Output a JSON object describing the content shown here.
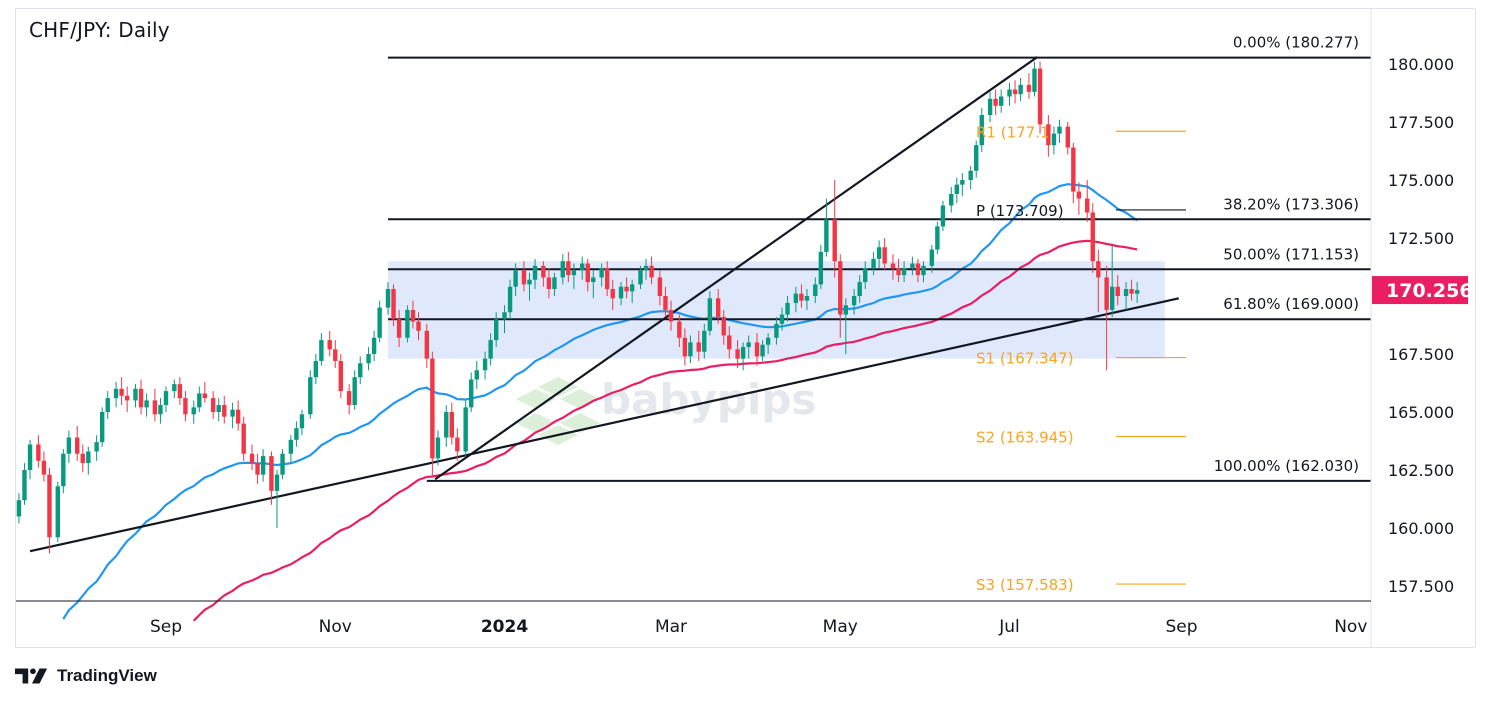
{
  "chart": {
    "title": "CHF/JPY: Daily"
  },
  "footer": {
    "brand": "TradingView"
  },
  "watermark": "babypips",
  "colors": {
    "up": "#089981",
    "down": "#f23645",
    "sma100": "#2196f3",
    "sma200": "#e91e63",
    "zone": "#dbe5fb",
    "pivot": "#f5a623",
    "line": "#131722",
    "price_badge": "#e91e63"
  },
  "chart_data": {
    "type": "candlestick",
    "title": "CHF/JPY: Daily",
    "y_axis": {
      "ticks": [
        "157.500",
        "160.000",
        "162.500",
        "165.000",
        "167.500",
        "170.000",
        "172.500",
        "175.000",
        "177.500",
        "180.000"
      ],
      "range": [
        156.5,
        182.0
      ]
    },
    "x_axis": {
      "ticks": [
        "Sep",
        "Nov",
        "2024",
        "Mar",
        "May",
        "Jul",
        "Sep",
        "Nov"
      ]
    },
    "current_price": "170.256",
    "fibonacci": [
      {
        "label": "0.00% (180.277)",
        "value": 180.277
      },
      {
        "label": "38.20% (173.306)",
        "value": 173.306
      },
      {
        "label": "50.00% (171.153)",
        "value": 171.153
      },
      {
        "label": "61.80% (169.000)",
        "value": 169.0
      },
      {
        "label": "100.00% (162.030)",
        "value": 162.03
      }
    ],
    "pivots": [
      {
        "label": "R1 (177.1",
        "value": 177.1,
        "color": "#f5a623"
      },
      {
        "label": "P (173.709)",
        "value": 173.709,
        "color": "#131722"
      },
      {
        "label": "S1 (167.347)",
        "value": 167.347,
        "color": "#f5a623"
      },
      {
        "label": "S2 (163.945)",
        "value": 163.945,
        "color": "#f5a623"
      },
      {
        "label": "S3 (157.583)",
        "value": 157.583,
        "color": "#f5a623"
      }
    ],
    "trendlines": [
      {
        "name": "rising-support",
        "points": [
          [
            "2023-07-14",
            159.0
          ],
          [
            "2024-08-31",
            169.9
          ]
        ]
      },
      {
        "name": "rising-channel-top",
        "points": [
          [
            "2023-12-07",
            162.1
          ],
          [
            "2024-07-11",
            180.3
          ]
        ]
      }
    ],
    "zone": {
      "from": "2023-11-20",
      "to": "2024-08-26",
      "low": 167.3,
      "high": 171.5
    },
    "candles": [
      [
        "2023-07-03",
        158.5,
        159.3,
        158.2,
        159.1
      ],
      [
        "2023-07-05",
        159.1,
        160.2,
        158.9,
        160.0
      ],
      [
        "2023-07-07",
        160.0,
        160.8,
        159.7,
        160.5
      ],
      [
        "2023-07-10",
        160.5,
        161.5,
        160.2,
        161.2
      ],
      [
        "2023-07-12",
        161.2,
        162.8,
        161.0,
        162.5
      ],
      [
        "2023-07-14",
        162.5,
        163.8,
        162.1,
        163.6
      ],
      [
        "2023-07-17",
        163.6,
        164.0,
        162.6,
        162.9
      ],
      [
        "2023-07-19",
        162.9,
        163.3,
        162.0,
        162.3
      ],
      [
        "2023-07-21",
        162.3,
        162.6,
        158.9,
        159.6
      ],
      [
        "2023-07-24",
        159.6,
        162.0,
        159.4,
        161.8
      ],
      [
        "2023-07-26",
        161.8,
        163.4,
        161.5,
        163.2
      ],
      [
        "2023-07-28",
        163.2,
        164.2,
        162.8,
        163.9
      ],
      [
        "2023-07-31",
        163.9,
        164.4,
        162.9,
        163.2
      ],
      [
        "2023-08-02",
        163.2,
        163.6,
        162.4,
        162.8
      ],
      [
        "2023-08-04",
        162.8,
        163.5,
        162.3,
        163.3
      ],
      [
        "2023-08-07",
        163.3,
        164.0,
        162.9,
        163.7
      ],
      [
        "2023-08-09",
        163.7,
        165.2,
        163.5,
        165.0
      ],
      [
        "2023-08-11",
        165.0,
        165.9,
        164.7,
        165.6
      ],
      [
        "2023-08-14",
        165.6,
        166.3,
        165.2,
        166.0
      ],
      [
        "2023-08-16",
        166.0,
        166.5,
        165.3,
        165.7
      ],
      [
        "2023-08-18",
        165.7,
        166.1,
        165.0,
        165.5
      ],
      [
        "2023-08-21",
        165.5,
        166.2,
        165.2,
        166.0
      ],
      [
        "2023-08-23",
        166.0,
        166.4,
        164.9,
        165.2
      ],
      [
        "2023-08-25",
        165.2,
        165.8,
        164.8,
        165.5
      ],
      [
        "2023-08-28",
        165.5,
        166.0,
        164.6,
        164.9
      ],
      [
        "2023-08-30",
        164.9,
        165.6,
        164.5,
        165.3
      ],
      [
        "2023-09-01",
        165.3,
        166.1,
        165.0,
        165.9
      ],
      [
        "2023-09-04",
        165.9,
        166.4,
        165.6,
        166.2
      ],
      [
        "2023-09-06",
        166.2,
        166.5,
        165.3,
        165.6
      ],
      [
        "2023-09-08",
        165.6,
        165.9,
        164.6,
        164.9
      ],
      [
        "2023-09-11",
        164.9,
        165.5,
        164.5,
        165.2
      ],
      [
        "2023-09-13",
        165.2,
        166.1,
        165.0,
        165.8
      ],
      [
        "2023-09-15",
        165.8,
        166.3,
        165.4,
        165.6
      ],
      [
        "2023-09-18",
        165.6,
        165.9,
        164.7,
        165.0
      ],
      [
        "2023-09-20",
        165.0,
        165.6,
        164.6,
        165.3
      ],
      [
        "2023-09-22",
        165.3,
        165.7,
        164.5,
        164.8
      ],
      [
        "2023-09-25",
        164.8,
        165.4,
        164.3,
        165.1
      ],
      [
        "2023-09-27",
        165.1,
        165.5,
        164.2,
        164.5
      ],
      [
        "2023-09-29",
        164.5,
        164.8,
        162.9,
        163.2
      ],
      [
        "2023-10-02",
        163.2,
        163.6,
        162.5,
        162.8
      ],
      [
        "2023-10-04",
        162.8,
        163.2,
        161.9,
        162.3
      ],
      [
        "2023-10-06",
        162.3,
        163.4,
        162.0,
        163.1
      ],
      [
        "2023-10-09",
        163.1,
        163.3,
        161.0,
        161.6
      ],
      [
        "2023-10-11",
        161.6,
        162.5,
        160.0,
        162.3
      ],
      [
        "2023-10-13",
        162.3,
        163.4,
        162.1,
        163.2
      ],
      [
        "2023-10-16",
        163.2,
        164.0,
        162.8,
        163.8
      ],
      [
        "2023-10-18",
        163.8,
        164.6,
        163.5,
        164.3
      ],
      [
        "2023-10-20",
        164.3,
        165.1,
        164.0,
        164.9
      ],
      [
        "2023-10-23",
        164.9,
        166.8,
        164.7,
        166.5
      ],
      [
        "2023-10-25",
        166.5,
        167.5,
        166.2,
        167.2
      ],
      [
        "2023-10-27",
        167.2,
        168.4,
        167.0,
        168.1
      ],
      [
        "2023-10-30",
        168.1,
        168.5,
        167.4,
        167.7
      ],
      [
        "2023-11-01",
        167.7,
        168.1,
        166.9,
        167.2
      ],
      [
        "2023-11-03",
        167.2,
        167.5,
        165.6,
        165.9
      ],
      [
        "2023-11-06",
        165.9,
        166.2,
        164.9,
        165.3
      ],
      [
        "2023-11-08",
        165.3,
        166.8,
        165.1,
        166.5
      ],
      [
        "2023-11-10",
        166.5,
        167.4,
        166.2,
        167.1
      ],
      [
        "2023-11-13",
        167.1,
        167.8,
        166.8,
        167.5
      ],
      [
        "2023-11-15",
        167.5,
        168.5,
        167.2,
        168.2
      ],
      [
        "2023-11-17",
        168.2,
        169.8,
        168.0,
        169.5
      ],
      [
        "2023-11-20",
        169.5,
        170.6,
        169.2,
        170.3
      ],
      [
        "2023-11-22",
        170.3,
        170.5,
        168.7,
        169.0
      ],
      [
        "2023-11-24",
        169.0,
        169.4,
        167.8,
        168.2
      ],
      [
        "2023-11-27",
        168.2,
        169.6,
        168.0,
        169.4
      ],
      [
        "2023-11-29",
        169.4,
        169.8,
        168.6,
        168.9
      ],
      [
        "2023-12-01",
        168.9,
        169.3,
        168.1,
        168.5
      ],
      [
        "2023-12-04",
        168.5,
        168.8,
        166.9,
        167.3
      ],
      [
        "2023-12-06",
        167.3,
        167.6,
        162.2,
        163.0
      ],
      [
        "2023-12-08",
        163.0,
        164.2,
        162.7,
        163.9
      ],
      [
        "2023-12-11",
        163.9,
        165.3,
        163.5,
        165.0
      ],
      [
        "2023-12-13",
        165.0,
        165.4,
        163.6,
        163.9
      ],
      [
        "2023-12-15",
        163.9,
        164.3,
        162.9,
        163.3
      ],
      [
        "2023-12-18",
        163.3,
        165.5,
        163.1,
        165.2
      ],
      [
        "2023-12-20",
        165.2,
        166.7,
        165.0,
        166.4
      ],
      [
        "2023-12-22",
        166.4,
        167.2,
        166.0,
        166.8
      ],
      [
        "2023-12-25",
        166.8,
        167.6,
        166.4,
        167.3
      ],
      [
        "2023-12-27",
        167.3,
        168.4,
        167.0,
        168.1
      ],
      [
        "2023-12-29",
        168.1,
        169.3,
        167.8,
        169.0
      ],
      [
        "2024-01-01",
        169.0,
        169.6,
        168.4,
        169.3
      ],
      [
        "2024-01-03",
        169.3,
        170.7,
        169.0,
        170.4
      ],
      [
        "2024-01-05",
        170.4,
        171.4,
        170.0,
        171.1
      ],
      [
        "2024-01-08",
        171.1,
        171.5,
        170.2,
        170.5
      ],
      [
        "2024-01-10",
        170.5,
        171.0,
        169.8,
        170.7
      ],
      [
        "2024-01-12",
        170.7,
        171.6,
        170.3,
        171.3
      ],
      [
        "2024-01-15",
        171.3,
        171.5,
        170.4,
        170.8
      ],
      [
        "2024-01-17",
        170.8,
        171.2,
        169.9,
        170.3
      ],
      [
        "2024-01-19",
        170.3,
        171.0,
        170.0,
        170.8
      ],
      [
        "2024-01-22",
        170.8,
        171.8,
        170.5,
        171.5
      ],
      [
        "2024-01-24",
        171.5,
        171.9,
        170.6,
        170.9
      ],
      [
        "2024-01-26",
        170.9,
        171.4,
        170.3,
        171.1
      ],
      [
        "2024-01-29",
        171.1,
        171.7,
        170.7,
        171.4
      ],
      [
        "2024-01-31",
        171.4,
        171.6,
        170.2,
        170.6
      ],
      [
        "2024-02-02",
        170.6,
        171.1,
        169.9,
        170.8
      ],
      [
        "2024-02-05",
        170.8,
        171.4,
        170.4,
        171.2
      ],
      [
        "2024-02-07",
        171.2,
        171.5,
        170.0,
        170.3
      ],
      [
        "2024-02-09",
        170.3,
        170.7,
        169.4,
        169.9
      ],
      [
        "2024-02-12",
        169.9,
        170.6,
        169.6,
        170.4
      ],
      [
        "2024-02-14",
        170.4,
        170.8,
        169.9,
        170.2
      ],
      [
        "2024-02-16",
        170.2,
        170.7,
        169.7,
        170.5
      ],
      [
        "2024-02-19",
        170.5,
        171.3,
        170.3,
        171.1
      ],
      [
        "2024-02-21",
        171.1,
        171.6,
        170.7,
        171.3
      ],
      [
        "2024-02-23",
        171.3,
        171.7,
        170.5,
        170.8
      ],
      [
        "2024-02-26",
        170.8,
        171.1,
        169.6,
        170.0
      ],
      [
        "2024-02-28",
        170.0,
        170.4,
        169.1,
        169.4
      ],
      [
        "2024-03-01",
        169.4,
        169.8,
        168.5,
        168.9
      ],
      [
        "2024-03-04",
        168.9,
        169.2,
        167.8,
        168.2
      ],
      [
        "2024-03-06",
        168.2,
        168.6,
        167.0,
        167.4
      ],
      [
        "2024-03-08",
        167.4,
        168.3,
        167.1,
        168.0
      ],
      [
        "2024-03-11",
        168.0,
        168.5,
        167.2,
        167.6
      ],
      [
        "2024-03-13",
        167.6,
        168.8,
        167.3,
        168.5
      ],
      [
        "2024-03-15",
        168.5,
        170.2,
        168.3,
        169.9
      ],
      [
        "2024-03-18",
        169.9,
        170.3,
        168.8,
        169.1
      ],
      [
        "2024-03-20",
        169.1,
        169.4,
        167.9,
        168.3
      ],
      [
        "2024-03-22",
        168.3,
        168.7,
        167.3,
        167.7
      ],
      [
        "2024-03-25",
        167.7,
        168.1,
        166.9,
        167.3
      ],
      [
        "2024-03-27",
        167.3,
        168.0,
        166.8,
        167.8
      ],
      [
        "2024-03-29",
        167.8,
        168.3,
        167.3,
        168.0
      ],
      [
        "2024-04-01",
        168.0,
        168.4,
        167.0,
        167.4
      ],
      [
        "2024-04-03",
        167.4,
        168.1,
        167.2,
        167.9
      ],
      [
        "2024-04-05",
        167.9,
        168.4,
        167.5,
        168.2
      ],
      [
        "2024-04-08",
        168.2,
        169.1,
        167.9,
        168.8
      ],
      [
        "2024-04-10",
        168.8,
        169.5,
        168.5,
        169.2
      ],
      [
        "2024-04-12",
        169.2,
        170.0,
        168.9,
        169.7
      ],
      [
        "2024-04-15",
        169.7,
        170.4,
        169.3,
        170.1
      ],
      [
        "2024-04-17",
        170.1,
        170.5,
        169.5,
        169.8
      ],
      [
        "2024-04-19",
        169.8,
        170.3,
        169.4,
        170.0
      ],
      [
        "2024-04-22",
        170.0,
        170.8,
        169.7,
        170.5
      ],
      [
        "2024-04-24",
        170.5,
        172.2,
        170.3,
        171.9
      ],
      [
        "2024-04-26",
        171.9,
        174.2,
        171.7,
        173.3
      ],
      [
        "2024-04-29",
        173.3,
        175.0,
        170.8,
        171.5
      ],
      [
        "2024-05-01",
        171.5,
        171.8,
        168.2,
        169.2
      ],
      [
        "2024-05-03",
        169.2,
        169.9,
        167.5,
        169.6
      ],
      [
        "2024-05-06",
        169.6,
        170.3,
        169.2,
        170.0
      ],
      [
        "2024-05-08",
        170.0,
        170.9,
        169.7,
        170.6
      ],
      [
        "2024-05-10",
        170.6,
        171.5,
        170.3,
        171.2
      ],
      [
        "2024-05-13",
        171.2,
        171.9,
        170.9,
        171.6
      ],
      [
        "2024-05-15",
        171.6,
        172.4,
        171.2,
        172.1
      ],
      [
        "2024-05-17",
        172.1,
        172.5,
        171.1,
        171.4
      ],
      [
        "2024-05-20",
        171.4,
        171.8,
        170.7,
        171.2
      ],
      [
        "2024-05-22",
        171.2,
        171.6,
        170.6,
        170.9
      ],
      [
        "2024-05-24",
        170.9,
        171.5,
        170.6,
        171.2
      ],
      [
        "2024-05-27",
        171.2,
        171.7,
        170.9,
        171.4
      ],
      [
        "2024-05-29",
        171.4,
        171.6,
        170.6,
        170.9
      ],
      [
        "2024-05-31",
        170.9,
        171.5,
        170.6,
        171.3
      ],
      [
        "2024-06-03",
        171.3,
        172.2,
        171.0,
        172.0
      ],
      [
        "2024-06-05",
        172.0,
        173.2,
        171.8,
        173.0
      ],
      [
        "2024-06-07",
        173.0,
        174.1,
        172.8,
        173.9
      ],
      [
        "2024-06-10",
        173.9,
        174.7,
        173.6,
        174.4
      ],
      [
        "2024-06-12",
        174.4,
        175.1,
        174.0,
        174.8
      ],
      [
        "2024-06-14",
        174.8,
        175.3,
        174.3,
        175.0
      ],
      [
        "2024-06-17",
        175.0,
        175.6,
        174.6,
        175.4
      ],
      [
        "2024-06-19",
        175.4,
        176.7,
        175.1,
        176.5
      ],
      [
        "2024-06-21",
        176.5,
        178.1,
        176.2,
        177.8
      ],
      [
        "2024-06-24",
        177.8,
        178.8,
        177.5,
        178.5
      ],
      [
        "2024-06-26",
        178.5,
        178.9,
        177.8,
        178.2
      ],
      [
        "2024-06-28",
        178.2,
        178.9,
        177.9,
        178.6
      ],
      [
        "2024-07-01",
        178.6,
        179.2,
        178.2,
        178.9
      ],
      [
        "2024-07-03",
        178.9,
        179.3,
        178.3,
        178.7
      ],
      [
        "2024-07-05",
        178.7,
        179.4,
        178.4,
        179.1
      ],
      [
        "2024-07-08",
        179.1,
        179.6,
        178.5,
        178.8
      ],
      [
        "2024-07-10",
        178.8,
        180.1,
        178.6,
        179.8
      ],
      [
        "2024-07-12",
        179.8,
        180.1,
        177.0,
        177.4
      ],
      [
        "2024-07-15",
        177.4,
        177.8,
        176.0,
        176.5
      ],
      [
        "2024-07-17",
        176.5,
        177.3,
        176.1,
        177.0
      ],
      [
        "2024-07-19",
        177.0,
        177.6,
        176.6,
        177.3
      ],
      [
        "2024-07-22",
        177.3,
        177.5,
        176.1,
        176.4
      ],
      [
        "2024-07-24",
        176.4,
        176.6,
        174.0,
        174.5
      ],
      [
        "2024-07-26",
        174.5,
        174.9,
        173.5,
        174.2
      ],
      [
        "2024-07-29",
        174.2,
        175.0,
        173.2,
        173.6
      ],
      [
        "2024-07-31",
        173.6,
        174.0,
        171.0,
        171.5
      ],
      [
        "2024-08-02",
        171.5,
        172.0,
        169.3,
        170.8
      ],
      [
        "2024-08-05",
        170.8,
        171.3,
        166.8,
        169.4
      ],
      [
        "2024-08-07",
        169.4,
        172.2,
        169.1,
        170.4
      ],
      [
        "2024-08-09",
        170.4,
        170.9,
        169.6,
        170.0
      ],
      [
        "2024-08-12",
        170.0,
        170.6,
        169.4,
        170.3
      ],
      [
        "2024-08-14",
        170.3,
        170.7,
        169.8,
        170.1
      ],
      [
        "2024-08-16",
        170.1,
        170.6,
        169.7,
        170.256
      ]
    ]
  }
}
